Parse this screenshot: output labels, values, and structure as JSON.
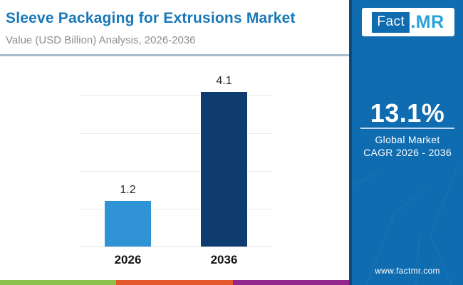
{
  "header": {
    "title": "Sleeve Packaging for Extrusions Market",
    "subtitle": "Value (USD Billion) Analysis, 2026-2036"
  },
  "logo": {
    "part1": "Fact",
    "part2": ".MR"
  },
  "sidebar": {
    "cagr_value": "13.1%",
    "cagr_label_line1": "Global Market",
    "cagr_label_line2": "CAGR 2026 - 2036",
    "website": "www.factmr.com"
  },
  "chart_data": {
    "type": "bar",
    "categories": [
      "2026",
      "2036"
    ],
    "values": [
      1.2,
      4.1
    ],
    "value_labels": [
      "1.2",
      "4.1"
    ],
    "bar_colors": [
      "#2f93d6",
      "#0e3c70"
    ],
    "title": "Sleeve Packaging for Extrusions Market",
    "xlabel": "",
    "ylabel": "Value (USD Billion)",
    "ylim": [
      0,
      4
    ],
    "grid": true,
    "gridline_values": [
      0,
      1,
      2,
      3,
      4
    ],
    "legend": false
  },
  "colors": {
    "accent_blue": "#1878b8",
    "sidebar_blue": "#0f6cb0",
    "bar_2026": "#2f93d6",
    "bar_2036": "#0e3c70",
    "strip_green": "#8cc04c",
    "strip_orange": "#e2582a",
    "strip_purple": "#93278f"
  }
}
